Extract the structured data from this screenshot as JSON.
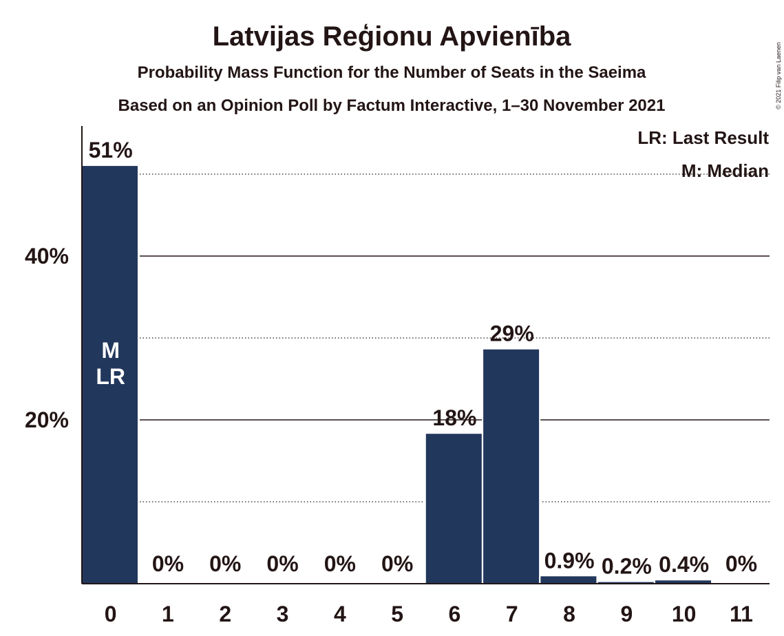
{
  "copyright": "© 2021 Filip van Laenen",
  "chart_data": {
    "type": "bar",
    "title": "Latvijas Reģionu Apvienība",
    "subtitle": "Probability Mass Function for the Number of Seats in the Saeima",
    "subtitle2": "Based on an Opinion Poll by Factum Interactive, 1–30 November 2021",
    "categories": [
      "0",
      "1",
      "2",
      "3",
      "4",
      "5",
      "6",
      "7",
      "8",
      "9",
      "10",
      "11"
    ],
    "values": [
      51,
      0,
      0,
      0,
      0,
      0,
      18.3,
      28.6,
      0.9,
      0.2,
      0.4,
      0
    ],
    "data_labels": [
      "51%",
      "0%",
      "0%",
      "0%",
      "0%",
      "0%",
      "18%",
      "29%",
      "0.9%",
      "0.2%",
      "0.4%",
      "0%"
    ],
    "bar_color": "#22375C",
    "ylim": [
      0,
      55
    ],
    "yticks": [
      {
        "value": 20,
        "label": "20%"
      },
      {
        "value": 40,
        "label": "40%"
      }
    ],
    "minor_gridlines": [
      10,
      30,
      50
    ],
    "median_seat": "0",
    "last_result_seat": "0",
    "median_marker": "M",
    "last_result_marker": "LR",
    "legend": [
      "LR: Last Result",
      "M: Median"
    ],
    "legend_position": "top-right"
  }
}
